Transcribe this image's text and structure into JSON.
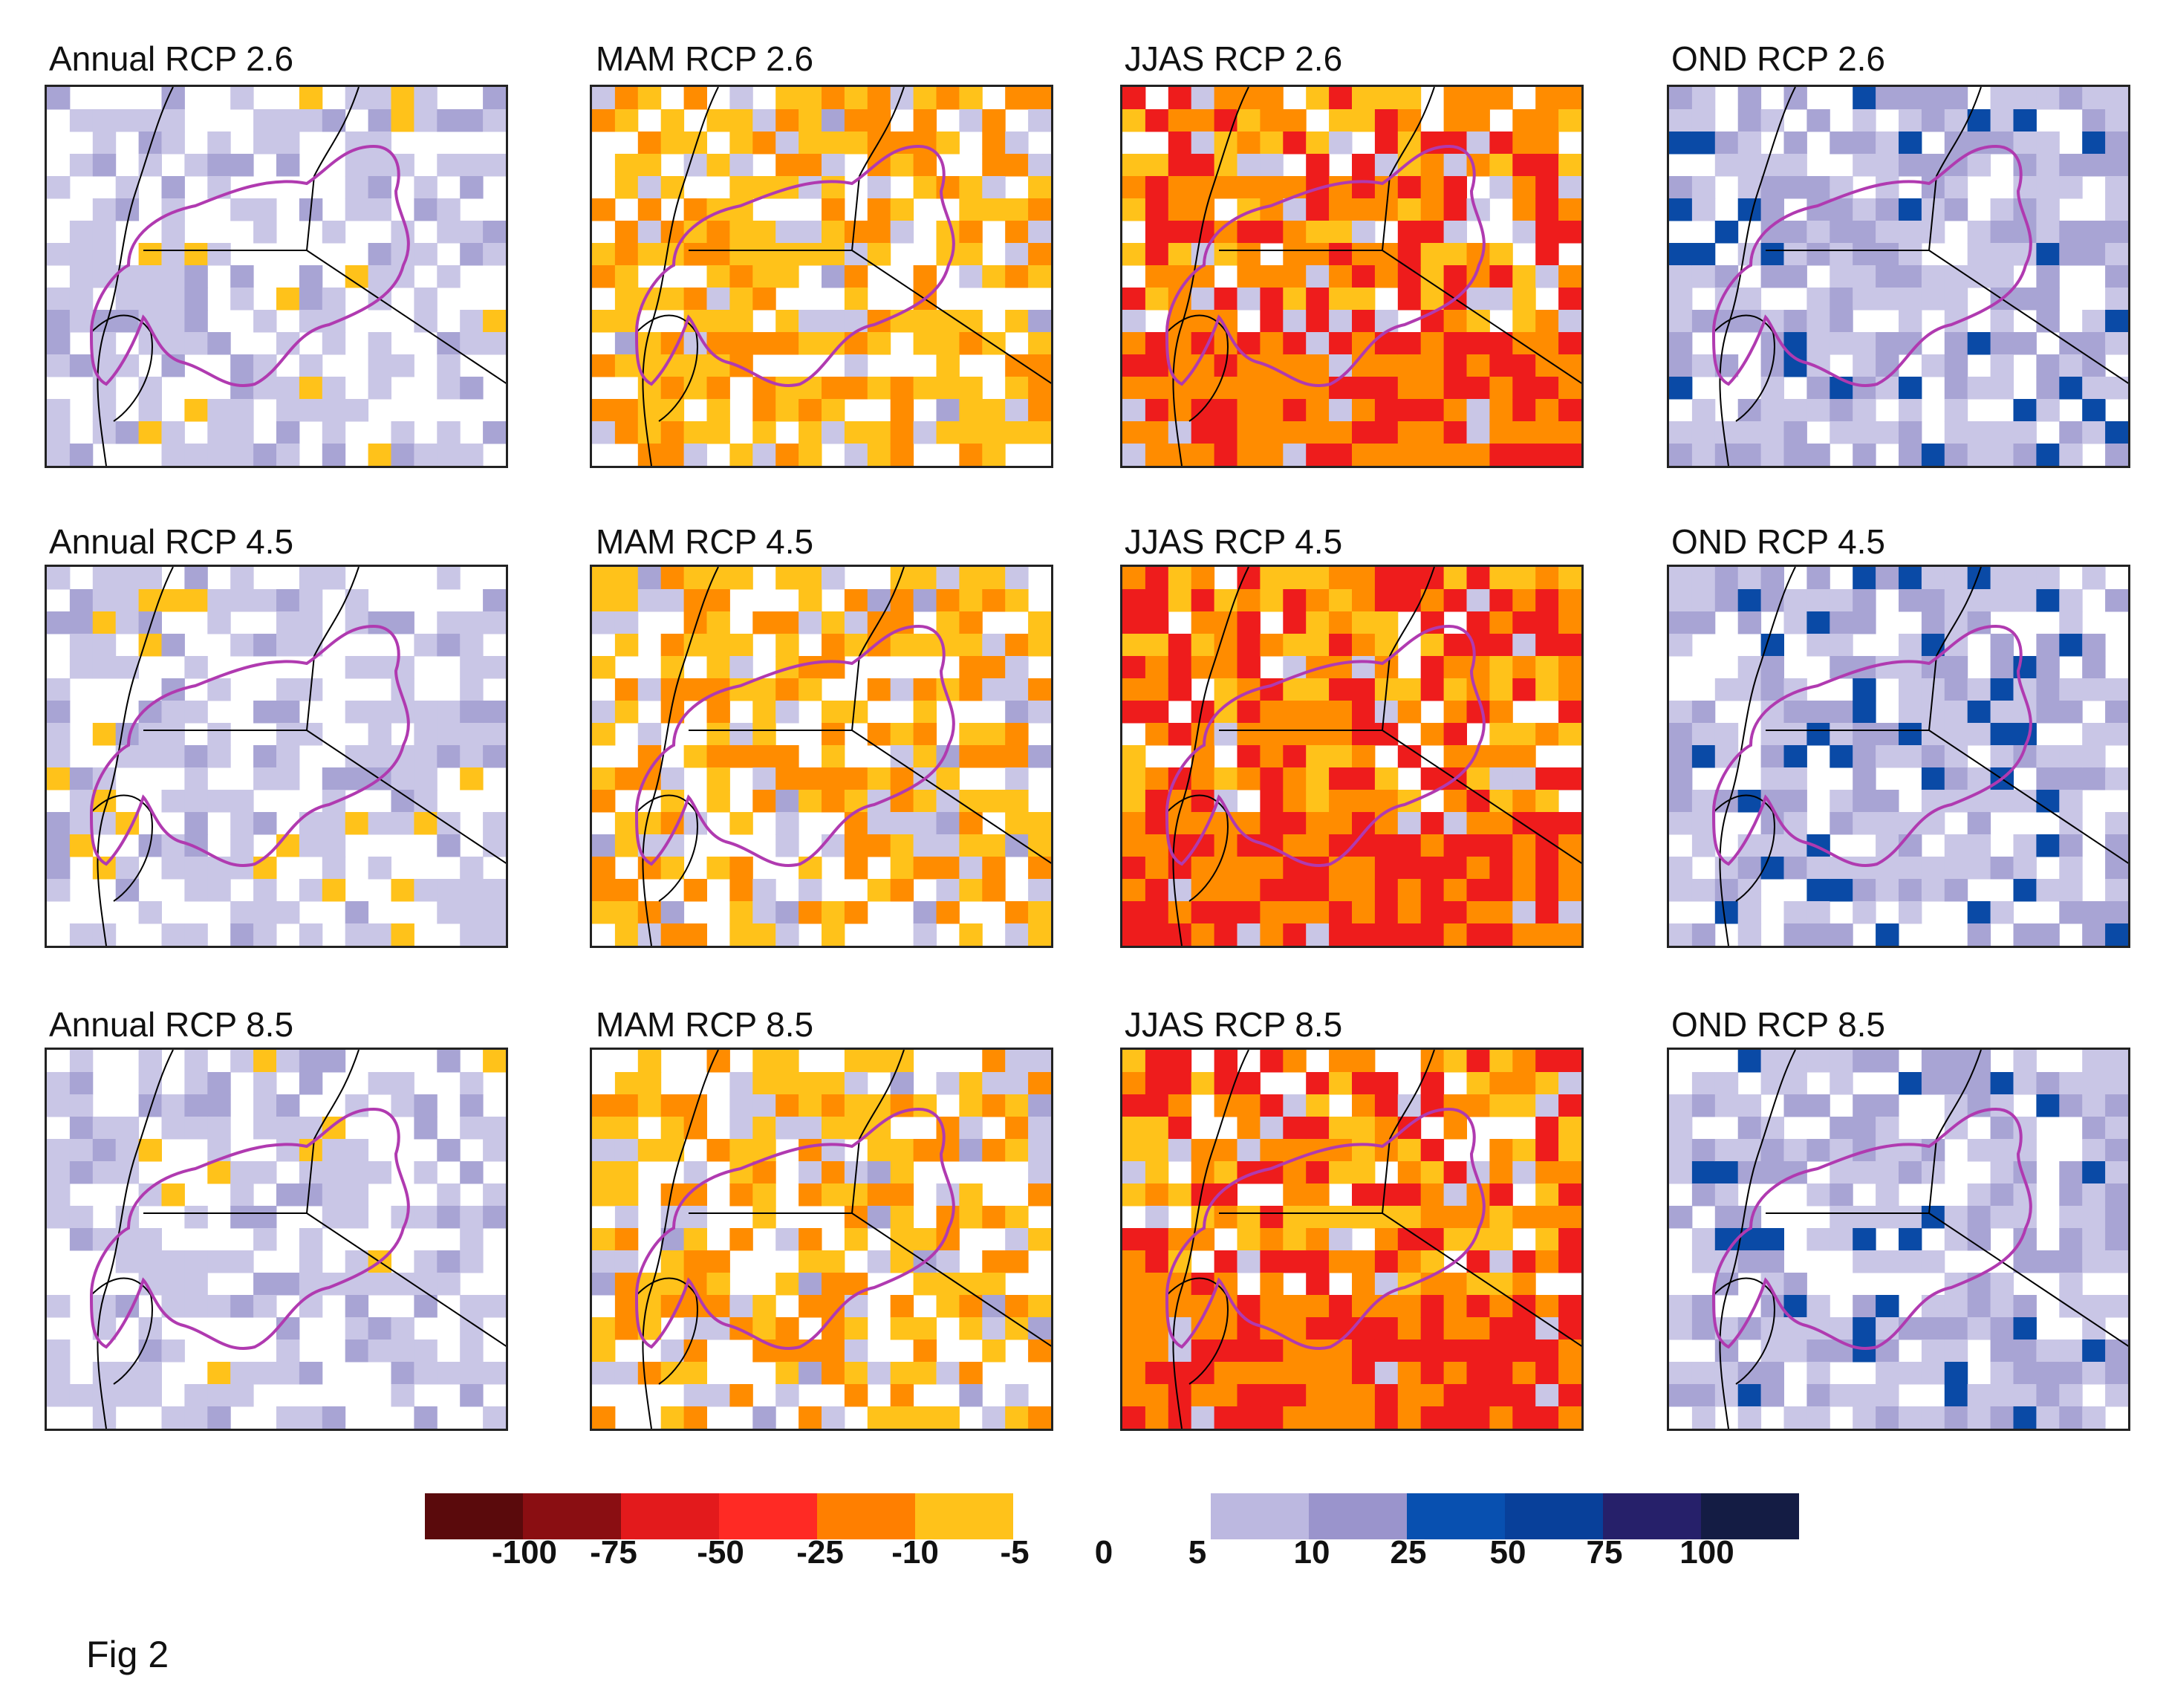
{
  "figure_label": "Fig 2",
  "panels": [
    {
      "title": "Annual RCP 2.6",
      "pattern": "annual26"
    },
    {
      "title": "MAM RCP 2.6",
      "pattern": "mam26"
    },
    {
      "title": "JJAS RCP 2.6",
      "pattern": "jjas26"
    },
    {
      "title": "OND RCP 2.6",
      "pattern": "ond26"
    },
    {
      "title": "Annual RCP 4.5",
      "pattern": "annual45"
    },
    {
      "title": "MAM RCP 4.5",
      "pattern": "mam45"
    },
    {
      "title": "JJAS RCP 4.5",
      "pattern": "jjas45"
    },
    {
      "title": "OND RCP 4.5",
      "pattern": "ond45"
    },
    {
      "title": "Annual RCP 8.5",
      "pattern": "annual85"
    },
    {
      "title": "MAM RCP 8.5",
      "pattern": "mam85"
    },
    {
      "title": "JJAS RCP 8.5",
      "pattern": "jjas85"
    },
    {
      "title": "OND RCP 8.5",
      "pattern": "ond85"
    }
  ],
  "legend": {
    "negative_colors": [
      "#5a0a0c",
      "#8a0e12",
      "#e31a1c",
      "#ff2a24",
      "#ff7f00",
      "#ffc21a"
    ],
    "positive_colors": [
      "#bcb8e0",
      "#9a94cc",
      "#0850b0",
      "#08409a",
      "#26206a",
      "#141c44"
    ],
    "negative_ticks": [
      "-100",
      "-75",
      "-50",
      "-25",
      "-10",
      "-5"
    ],
    "zero_tick": "0",
    "positive_ticks": [
      "5",
      "10",
      "25",
      "50",
      "75",
      "100"
    ]
  },
  "colors": {
    "basin_outline": "#b03ab0",
    "border_line": "#000000",
    "light_purple": "#c9c6e6",
    "mid_purple": "#a8a4d4",
    "dark_blue": "#0a4aa6",
    "yellow": "#ffc21a",
    "orange": "#ff8c00",
    "red": "#ee1c1c",
    "navy": "#1a2a5a"
  }
}
